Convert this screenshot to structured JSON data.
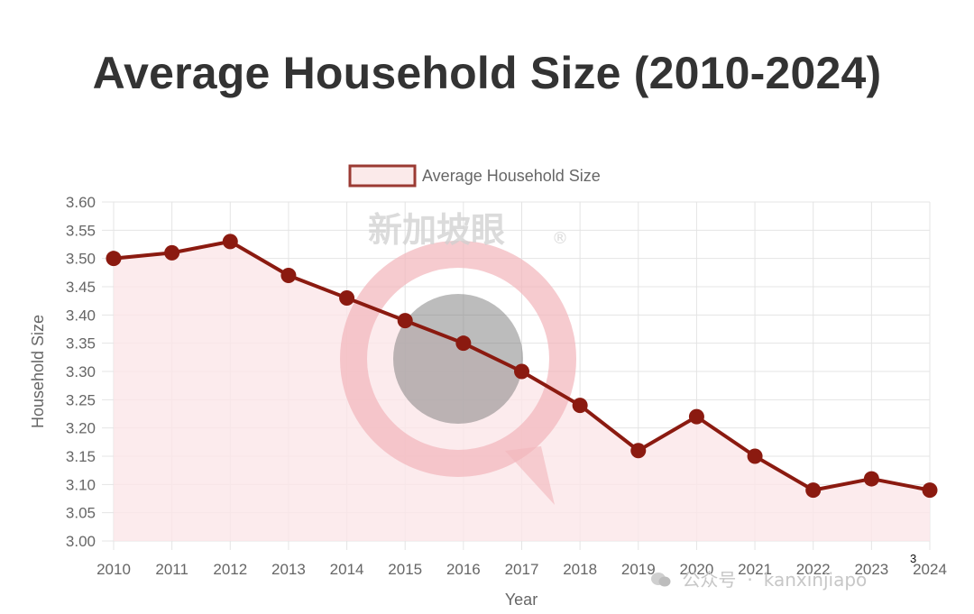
{
  "chart_data": {
    "type": "line",
    "title": "Average Household Size (2010-2024)",
    "xlabel": "Year",
    "ylabel": "Household Size",
    "ylim": [
      3.0,
      3.6
    ],
    "ytick_step": 0.05,
    "grid": true,
    "legend_position": "top",
    "categories": [
      "2010",
      "2011",
      "2012",
      "2013",
      "2014",
      "2015",
      "2016",
      "2017",
      "2018",
      "2019",
      "2020",
      "2021",
      "2022",
      "2023",
      "2024"
    ],
    "series": [
      {
        "name": "Average Household Size",
        "values": [
          3.5,
          3.51,
          3.53,
          3.47,
          3.43,
          3.39,
          3.35,
          3.3,
          3.24,
          3.16,
          3.22,
          3.15,
          3.09,
          3.11,
          3.09
        ],
        "color": "#8b1a10",
        "fill": "area"
      }
    ]
  },
  "watermark": {
    "text": "新加坡眼",
    "mark": "®"
  },
  "footer": {
    "source": "公众号",
    "handle": "kanxinjiapo"
  },
  "page_number": "3"
}
